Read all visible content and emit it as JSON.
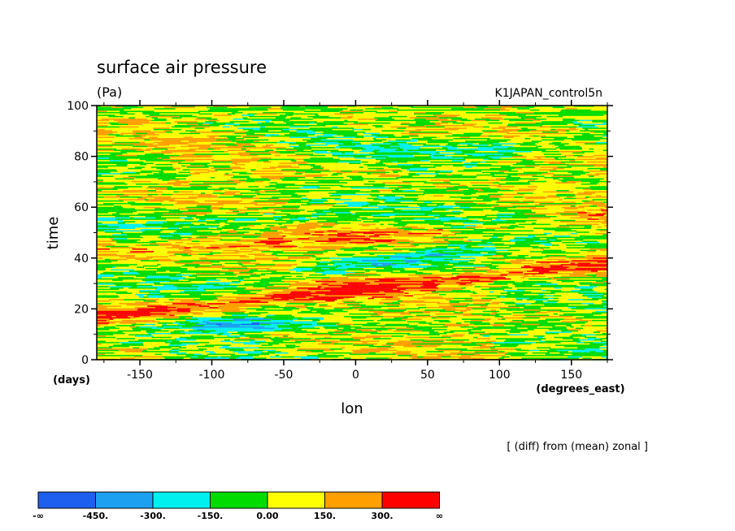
{
  "chart_data": {
    "type": "heatmap",
    "title": "surface air pressure",
    "units": "(Pa)",
    "dataset": "K1JAPAN_control5n",
    "note": "[ (diff) from (mean) zonal ]",
    "xlabel": "lon",
    "xunits": "(degrees_east)",
    "ylabel": "time",
    "yunits": "(days)",
    "xlim": [
      -180,
      175
    ],
    "ylim": [
      0,
      100
    ],
    "xticks": [
      -150,
      -100,
      -50,
      0,
      50,
      100,
      150
    ],
    "yticks": [
      0,
      20,
      40,
      60,
      80,
      100
    ],
    "color_levels": [
      "-∞",
      "-450.",
      "-300.",
      "-150.",
      "0.00",
      "150.",
      "300.",
      "∞"
    ],
    "color_bins": [
      {
        "range": "-inf to -450",
        "color": "#1e5ff0"
      },
      {
        "range": "-450 to -300",
        "color": "#1ea0f0"
      },
      {
        "range": "-300 to -150",
        "color": "#00f0f0"
      },
      {
        "range": "-150 to 0",
        "color": "#00dc00"
      },
      {
        "range": "0 to 150",
        "color": "#ffff00"
      },
      {
        "range": "150 to 300",
        "color": "#ffa000"
      },
      {
        "range": "300 to inf",
        "color": "#ff0000"
      }
    ],
    "features": [
      {
        "description": "eastward-propagating positive anomaly band",
        "lon_start": -180,
        "time_start": 17,
        "lon_end": 175,
        "time_end": 38,
        "sign": "positive"
      },
      {
        "description": "negative anomaly patch",
        "lon_center": -90,
        "time_center": 14,
        "sign": "negative"
      },
      {
        "description": "negative anomaly band",
        "lon_start": -60,
        "time_start": 35,
        "lon_end": 80,
        "time_end": 45,
        "sign": "negative"
      },
      {
        "description": "negative anomaly band",
        "lon_start": -120,
        "time_start": 55,
        "lon_end": 0,
        "time_end": 60,
        "sign": "negative"
      },
      {
        "description": "positive anomaly band",
        "lon_start": -180,
        "time_start": 40,
        "lon_end": 40,
        "time_end": 52,
        "sign": "positive"
      }
    ]
  }
}
